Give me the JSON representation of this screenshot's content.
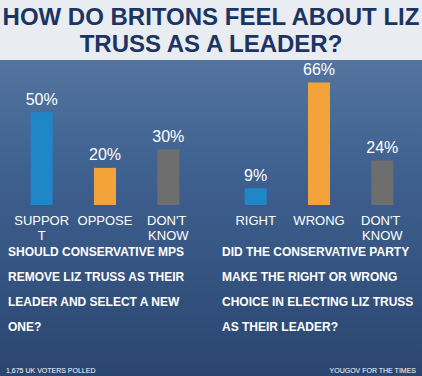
{
  "title": "HOW DO BRITONS FEEL ABOUT LIZ TRUSS AS A LEADER?",
  "chart_data": [
    {
      "type": "bar",
      "subtitle": "SHOULD CONSERVATIVE MPS REMOVE LIZ TRUSS AS THEIR LEADER AND SELECT A NEW ONE?",
      "categories": [
        "SUPPORT",
        "OPPOSE",
        "DON'T KNOW"
      ],
      "values": [
        50,
        20,
        30
      ],
      "value_labels": [
        "50%",
        "20%",
        "30%"
      ],
      "colors": [
        "#1f86c8",
        "#f2a33a",
        "#6e6e6e"
      ],
      "ylim": [
        0,
        70
      ],
      "data_labels": true,
      "tick_labels": "x",
      "annotations": [
        "1,675 UK VOTERS POLLED"
      ]
    },
    {
      "type": "bar",
      "subtitle": "DID THE CONSERVATIVE PARTY MAKE THE RIGHT OR WRONG CHOICE IN ELECTING LIZ TRUSS AS THEIR LEADER?",
      "categories": [
        "RIGHT",
        "WRONG",
        "DON'T KNOW"
      ],
      "values": [
        9,
        66,
        24
      ],
      "value_labels": [
        "9%",
        "66%",
        "24%"
      ],
      "colors": [
        "#1f86c8",
        "#f2a33a",
        "#6e6e6e"
      ],
      "ylim": [
        0,
        70
      ],
      "data_labels": true,
      "tick_labels": "x",
      "annotations": [
        "YOUGOV FOR THE TIMES"
      ]
    }
  ]
}
